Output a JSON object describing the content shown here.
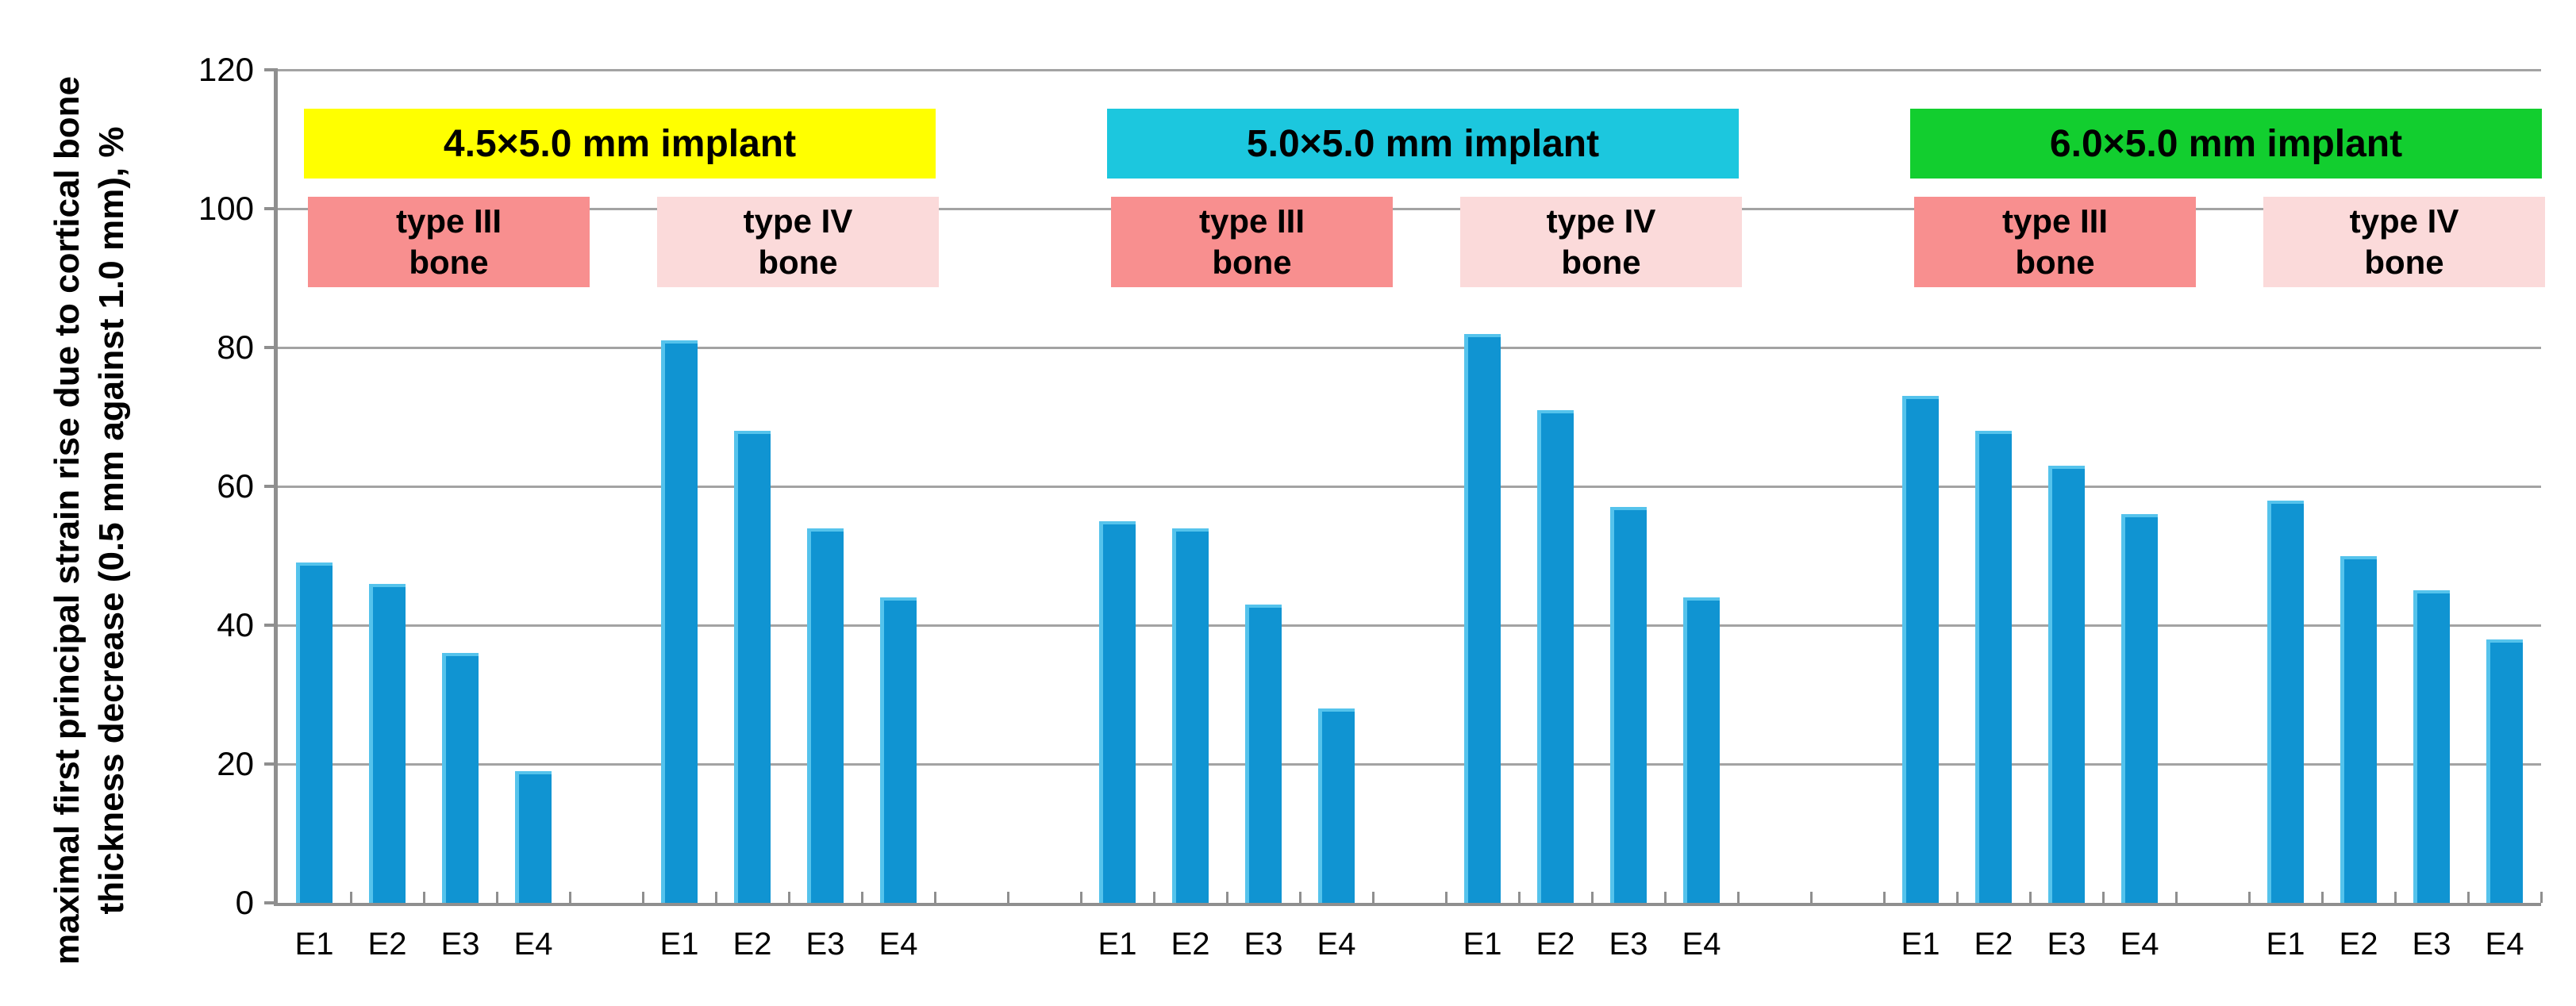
{
  "chart_data": {
    "type": "bar",
    "title": "",
    "ylabel_line1": "maximal first principal strain rise due to cortical bone",
    "ylabel_line2": "thickness decrease (0.5 mm against 1.0 mm), %",
    "ylim": [
      0,
      120
    ],
    "yticks": [
      0,
      20,
      40,
      60,
      80,
      100,
      120
    ],
    "grid": "horizontal",
    "legend_position": "none",
    "categories": [
      "E1",
      "E2",
      "E3",
      "E4"
    ],
    "bar_color": "#1094d2",
    "bar_highlight_color": "#55c3ec",
    "axis_color": "#8f8f8f",
    "gridline_color": "#a3a3a3",
    "clusters": [
      {
        "implant": "4.5×5.0 mm implant",
        "color": "#ffff00",
        "groups": [
          {
            "bone_lines": [
              "type III",
              "bone"
            ],
            "color": "#f88f8f",
            "values": [
              49,
              46,
              36,
              19
            ]
          },
          {
            "bone_lines": [
              "type IV",
              "bone"
            ],
            "color": "#fbdada",
            "values": [
              81,
              68,
              54,
              44
            ]
          }
        ]
      },
      {
        "implant": "5.0×5.0 mm implant",
        "color": "#1cc7de",
        "groups": [
          {
            "bone_lines": [
              "type III",
              "bone"
            ],
            "color": "#f88f8f",
            "values": [
              55,
              54,
              43,
              28
            ]
          },
          {
            "bone_lines": [
              "type IV",
              "bone"
            ],
            "color": "#fbdada",
            "values": [
              82,
              71,
              57,
              44
            ]
          }
        ]
      },
      {
        "implant": "6.0×5.0 mm implant",
        "color": "#12ce2f",
        "groups": [
          {
            "bone_lines": [
              "type III",
              "bone"
            ],
            "color": "#f88f8f",
            "values": [
              73,
              68,
              63,
              56
            ]
          },
          {
            "bone_lines": [
              "type IV",
              "bone"
            ],
            "color": "#fbdada",
            "values": [
              58,
              50,
              45,
              38
            ]
          }
        ]
      }
    ]
  }
}
